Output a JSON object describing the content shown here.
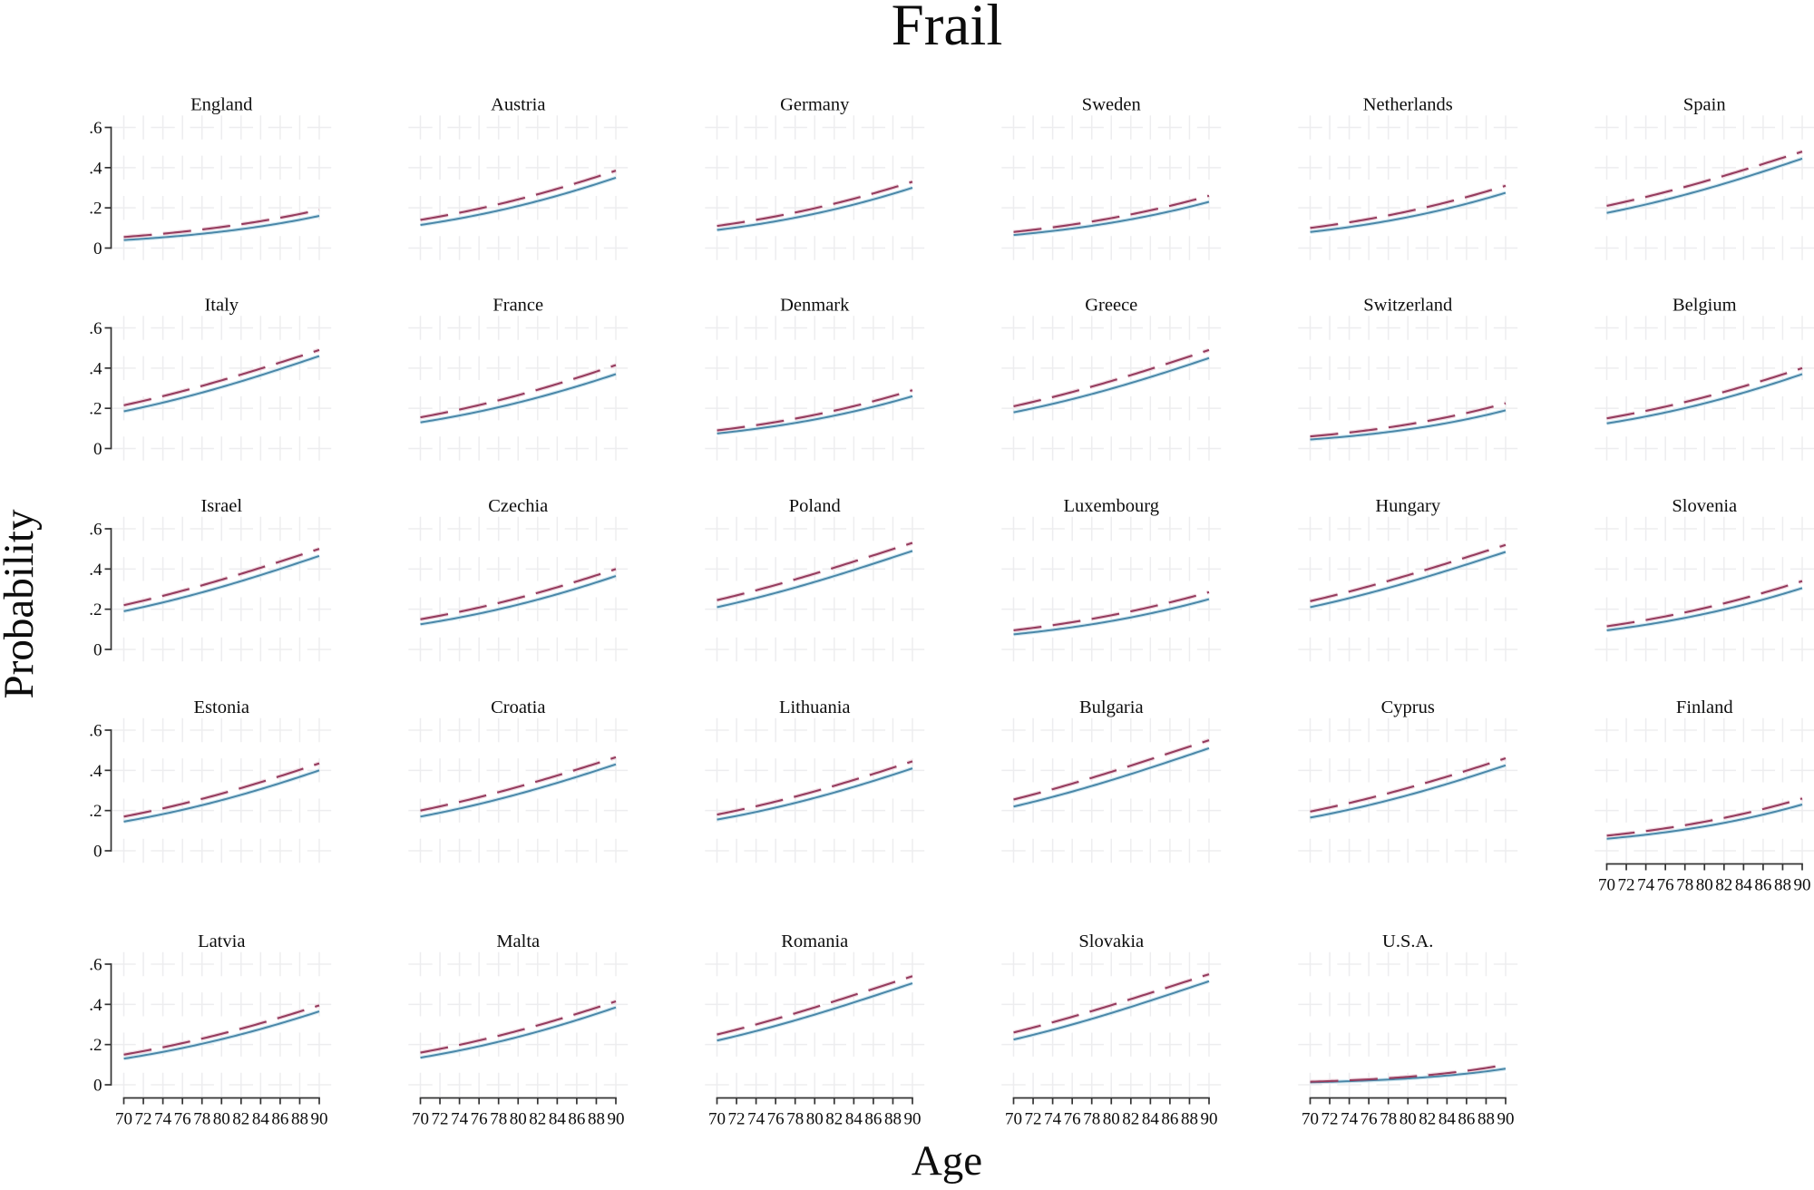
{
  "title": "Frail",
  "axes": {
    "x_title": "Age",
    "y_title": "Probability",
    "x_ticks": [
      70,
      72,
      74,
      76,
      78,
      80,
      82,
      84,
      86,
      88,
      90
    ],
    "y_ticks": [
      0,
      0.2,
      0.4,
      0.6
    ],
    "y_tick_labels": [
      "0",
      ".2",
      ".4",
      ".6"
    ],
    "xlim": [
      70,
      90
    ],
    "ylim": [
      0,
      0.6
    ]
  },
  "chart_data": {
    "type": "line",
    "title": "Frail",
    "xlabel": "Age",
    "ylabel": "Probability",
    "x_range": [
      70,
      90
    ],
    "ylim": [
      0,
      0.6
    ],
    "x_tick_step": 2,
    "y_ticks": [
      0,
      0.2,
      0.4,
      0.6
    ],
    "grid": "light-gray dashed cross grid at x ticks and y ticks",
    "legend_position": "none",
    "layout": {
      "rows": 5,
      "columns": 6
    },
    "curve_model": "logistic interpolation between endpoints at age 70 and age 90",
    "series_style": {
      "solid": {
        "name": "solid",
        "color": "#4a87a8",
        "halo": "#d6eaf2",
        "dash": "none",
        "width": 2.0
      },
      "dashed": {
        "name": "dashed",
        "color": "#953c5e",
        "halo": "#f0d9e1",
        "dash": [
          31,
          12.5
        ],
        "width": 2.1
      }
    },
    "panels": [
      {
        "country": "England",
        "solid": {
          "p70": 0.04,
          "p90": 0.16
        },
        "dashed": {
          "p70": 0.055,
          "p90": 0.19
        }
      },
      {
        "country": "Austria",
        "solid": {
          "p70": 0.115,
          "p90": 0.35
        },
        "dashed": {
          "p70": 0.14,
          "p90": 0.385
        }
      },
      {
        "country": "Germany",
        "solid": {
          "p70": 0.09,
          "p90": 0.3
        },
        "dashed": {
          "p70": 0.11,
          "p90": 0.33
        }
      },
      {
        "country": "Sweden",
        "solid": {
          "p70": 0.065,
          "p90": 0.23
        },
        "dashed": {
          "p70": 0.08,
          "p90": 0.26
        }
      },
      {
        "country": "Netherlands",
        "solid": {
          "p70": 0.08,
          "p90": 0.275
        },
        "dashed": {
          "p70": 0.1,
          "p90": 0.31
        }
      },
      {
        "country": "Spain",
        "solid": {
          "p70": 0.175,
          "p90": 0.445
        },
        "dashed": {
          "p70": 0.21,
          "p90": 0.48
        }
      },
      {
        "country": "Italy",
        "solid": {
          "p70": 0.185,
          "p90": 0.46
        },
        "dashed": {
          "p70": 0.215,
          "p90": 0.49
        }
      },
      {
        "country": "France",
        "solid": {
          "p70": 0.13,
          "p90": 0.37
        },
        "dashed": {
          "p70": 0.155,
          "p90": 0.415
        }
      },
      {
        "country": "Denmark",
        "solid": {
          "p70": 0.075,
          "p90": 0.26
        },
        "dashed": {
          "p70": 0.09,
          "p90": 0.29
        }
      },
      {
        "country": "Greece",
        "solid": {
          "p70": 0.18,
          "p90": 0.45
        },
        "dashed": {
          "p70": 0.21,
          "p90": 0.49
        }
      },
      {
        "country": "Switzerland",
        "solid": {
          "p70": 0.045,
          "p90": 0.19
        },
        "dashed": {
          "p70": 0.06,
          "p90": 0.225
        }
      },
      {
        "country": "Belgium",
        "solid": {
          "p70": 0.125,
          "p90": 0.37
        },
        "dashed": {
          "p70": 0.15,
          "p90": 0.4
        }
      },
      {
        "country": "Israel",
        "solid": {
          "p70": 0.19,
          "p90": 0.465
        },
        "dashed": {
          "p70": 0.22,
          "p90": 0.5
        }
      },
      {
        "country": "Czechia",
        "solid": {
          "p70": 0.125,
          "p90": 0.365
        },
        "dashed": {
          "p70": 0.15,
          "p90": 0.4
        }
      },
      {
        "country": "Poland",
        "solid": {
          "p70": 0.21,
          "p90": 0.49
        },
        "dashed": {
          "p70": 0.245,
          "p90": 0.53
        }
      },
      {
        "country": "Luxembourg",
        "solid": {
          "p70": 0.075,
          "p90": 0.25
        },
        "dashed": {
          "p70": 0.095,
          "p90": 0.285
        }
      },
      {
        "country": "Hungary",
        "solid": {
          "p70": 0.21,
          "p90": 0.485
        },
        "dashed": {
          "p70": 0.24,
          "p90": 0.52
        }
      },
      {
        "country": "Slovenia",
        "solid": {
          "p70": 0.095,
          "p90": 0.305
        },
        "dashed": {
          "p70": 0.115,
          "p90": 0.34
        }
      },
      {
        "country": "Estonia",
        "solid": {
          "p70": 0.145,
          "p90": 0.4
        },
        "dashed": {
          "p70": 0.17,
          "p90": 0.435
        }
      },
      {
        "country": "Croatia",
        "solid": {
          "p70": 0.17,
          "p90": 0.43
        },
        "dashed": {
          "p70": 0.2,
          "p90": 0.465
        }
      },
      {
        "country": "Lithuania",
        "solid": {
          "p70": 0.155,
          "p90": 0.41
        },
        "dashed": {
          "p70": 0.18,
          "p90": 0.445
        }
      },
      {
        "country": "Bulgaria",
        "solid": {
          "p70": 0.22,
          "p90": 0.51
        },
        "dashed": {
          "p70": 0.255,
          "p90": 0.55
        }
      },
      {
        "country": "Cyprus",
        "solid": {
          "p70": 0.165,
          "p90": 0.425
        },
        "dashed": {
          "p70": 0.195,
          "p90": 0.46
        }
      },
      {
        "country": "Finland",
        "solid": {
          "p70": 0.06,
          "p90": 0.23
        },
        "dashed": {
          "p70": 0.075,
          "p90": 0.26
        }
      },
      {
        "country": "Latvia",
        "solid": {
          "p70": 0.13,
          "p90": 0.365
        },
        "dashed": {
          "p70": 0.15,
          "p90": 0.395
        }
      },
      {
        "country": "Malta",
        "solid": {
          "p70": 0.135,
          "p90": 0.385
        },
        "dashed": {
          "p70": 0.16,
          "p90": 0.415
        }
      },
      {
        "country": "Romania",
        "solid": {
          "p70": 0.22,
          "p90": 0.505
        },
        "dashed": {
          "p70": 0.25,
          "p90": 0.54
        }
      },
      {
        "country": "Slovakia",
        "solid": {
          "p70": 0.225,
          "p90": 0.515
        },
        "dashed": {
          "p70": 0.26,
          "p90": 0.55
        }
      },
      {
        "country": "U.S.A.",
        "solid": {
          "p70": 0.012,
          "p90": 0.08
        },
        "dashed": {
          "p70": 0.015,
          "p90": 0.1
        }
      }
    ]
  }
}
